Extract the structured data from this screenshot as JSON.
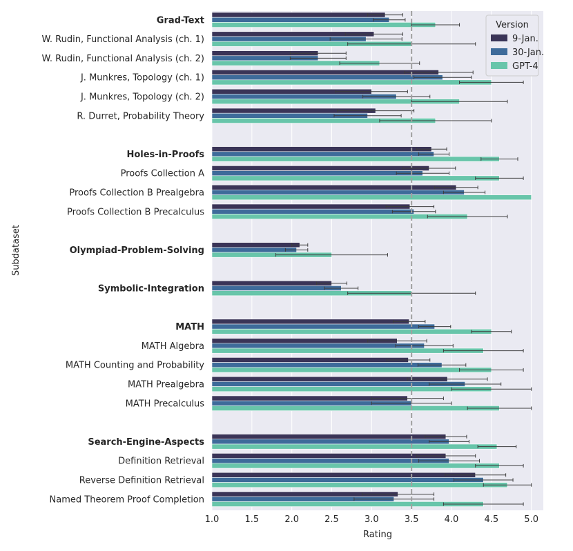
{
  "chart_data": {
    "type": "bar",
    "orientation": "horizontal",
    "xlabel": "Rating",
    "ylabel": "Subdataset",
    "xlim": [
      1.0,
      5.15
    ],
    "xticks": [
      "1.0",
      "1.5",
      "2.0",
      "2.5",
      "3.0",
      "3.5",
      "4.0",
      "4.5",
      "5.0"
    ],
    "reference_line": {
      "x": 3.5,
      "style": "dashed"
    },
    "grid": true,
    "legend": {
      "title": "Version",
      "position": "top-right"
    },
    "series": [
      {
        "name": "9-Jan.",
        "color": "#3a3457"
      },
      {
        "name": "30-Jan.",
        "color": "#3e6b9a"
      },
      {
        "name": "GPT-4",
        "color": "#68c5aa"
      }
    ],
    "categories": [
      {
        "label": "Grad-Text",
        "bold": true,
        "values": [
          3.17,
          3.22,
          3.8
        ],
        "errors": [
          0.22,
          0.2,
          0.3
        ],
        "slot": 0
      },
      {
        "label": "W. Rudin, Functional Analysis (ch. 1)",
        "bold": false,
        "values": [
          3.03,
          2.93,
          3.5
        ],
        "errors": [
          0.36,
          0.45,
          0.8
        ],
        "slot": 1
      },
      {
        "label": "W. Rudin, Functional Analysis (ch. 2)",
        "bold": false,
        "values": [
          2.33,
          2.33,
          3.1
        ],
        "errors": [
          0.35,
          0.35,
          0.5
        ],
        "slot": 2
      },
      {
        "label": "J. Munkres, Topology (ch. 1)",
        "bold": false,
        "values": [
          3.84,
          3.89,
          4.5
        ],
        "errors": [
          0.43,
          0.36,
          0.4
        ],
        "slot": 3
      },
      {
        "label": "J. Munkres, Topology (ch. 2)",
        "bold": false,
        "values": [
          3.0,
          3.31,
          4.1
        ],
        "errors": [
          0.45,
          0.42,
          0.6
        ],
        "slot": 4
      },
      {
        "label": "R. Durret, Probability Theory",
        "bold": false,
        "values": [
          3.05,
          2.95,
          3.8
        ],
        "errors": [
          0.48,
          0.42,
          0.7
        ],
        "slot": 5
      },
      {
        "label": "Holes-in-Proofs",
        "bold": true,
        "values": [
          3.75,
          3.78,
          4.6
        ],
        "errors": [
          0.19,
          0.19,
          0.23
        ],
        "slot": 7
      },
      {
        "label": "Proofs Collection A",
        "bold": false,
        "values": [
          3.72,
          3.64,
          4.6
        ],
        "errors": [
          0.33,
          0.33,
          0.3
        ],
        "slot": 8
      },
      {
        "label": "Proofs Collection B Prealgebra",
        "bold": false,
        "values": [
          4.06,
          4.16,
          5.0
        ],
        "errors": [
          0.27,
          0.26,
          0.0
        ],
        "slot": 9
      },
      {
        "label": "Proofs Collection B Precalculus",
        "bold": false,
        "values": [
          3.48,
          3.53,
          4.2
        ],
        "errors": [
          0.3,
          0.27,
          0.5
        ],
        "slot": 10
      },
      {
        "label": "Olympiad-Problem-Solving",
        "bold": true,
        "values": [
          2.1,
          2.06,
          2.5
        ],
        "errors": [
          0.1,
          0.14,
          0.7
        ],
        "slot": 12
      },
      {
        "label": "Symbolic-Integration",
        "bold": true,
        "values": [
          2.5,
          2.62,
          3.5
        ],
        "errors": [
          0.19,
          0.21,
          0.8
        ],
        "slot": 14
      },
      {
        "label": "MATH",
        "bold": true,
        "values": [
          3.47,
          3.79,
          4.5
        ],
        "errors": [
          0.2,
          0.2,
          0.25
        ],
        "slot": 16
      },
      {
        "label": "MATH Algebra",
        "bold": false,
        "values": [
          3.32,
          3.66,
          4.4
        ],
        "errors": [
          0.37,
          0.36,
          0.5
        ],
        "slot": 17
      },
      {
        "label": "MATH Counting and Probability",
        "bold": false,
        "values": [
          3.46,
          3.88,
          4.5
        ],
        "errors": [
          0.27,
          0.3,
          0.4
        ],
        "slot": 18
      },
      {
        "label": "MATH Prealgebra",
        "bold": false,
        "values": [
          3.95,
          4.17,
          4.5
        ],
        "errors": [
          0.5,
          0.45,
          0.5
        ],
        "slot": 19
      },
      {
        "label": "MATH Precalculus",
        "bold": false,
        "values": [
          3.45,
          3.5,
          4.6
        ],
        "errors": [
          0.45,
          0.5,
          0.4
        ],
        "slot": 20
      },
      {
        "label": "Search-Engine-Aspects",
        "bold": true,
        "values": [
          3.93,
          3.97,
          4.57
        ],
        "errors": [
          0.26,
          0.25,
          0.24
        ],
        "slot": 22
      },
      {
        "label": "Definition Retrieval",
        "bold": false,
        "values": [
          3.93,
          3.97,
          4.6
        ],
        "errors": [
          0.37,
          0.38,
          0.3
        ],
        "slot": 23
      },
      {
        "label": "Reverse Definition Retrieval",
        "bold": false,
        "values": [
          4.3,
          4.4,
          4.7
        ],
        "errors": [
          0.38,
          0.37,
          0.3
        ],
        "slot": 24
      },
      {
        "label": "Named Theorem Proof Completion",
        "bold": false,
        "values": [
          3.33,
          3.28,
          4.4
        ],
        "errors": [
          0.45,
          0.5,
          0.5
        ],
        "slot": 25
      }
    ]
  }
}
